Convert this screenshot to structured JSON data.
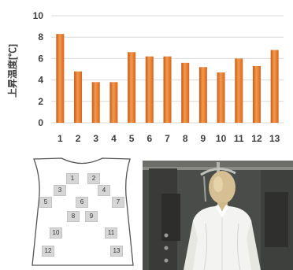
{
  "chart_data": {
    "type": "bar",
    "categories": [
      "1",
      "2",
      "3",
      "4",
      "5",
      "6",
      "7",
      "8",
      "9",
      "10",
      "11",
      "12",
      "13"
    ],
    "values": [
      8.3,
      4.8,
      3.8,
      3.8,
      6.6,
      6.2,
      6.2,
      5.6,
      5.2,
      4.7,
      6.0,
      5.3,
      6.8
    ],
    "title": "",
    "xlabel": "",
    "ylabel": "上昇温度[℃]",
    "ylim": [
      0,
      10
    ],
    "yticks": [
      "0",
      "2",
      "4",
      "6",
      "8",
      "10"
    ],
    "grid": true,
    "bar_color": "#e8782a"
  },
  "shirt_diagram": {
    "sensors": [
      "1",
      "2",
      "3",
      "4",
      "5",
      "6",
      "7",
      "8",
      "9",
      "10",
      "11",
      "12",
      "13"
    ]
  },
  "photo": {
    "icon": "mannequin-photo"
  }
}
